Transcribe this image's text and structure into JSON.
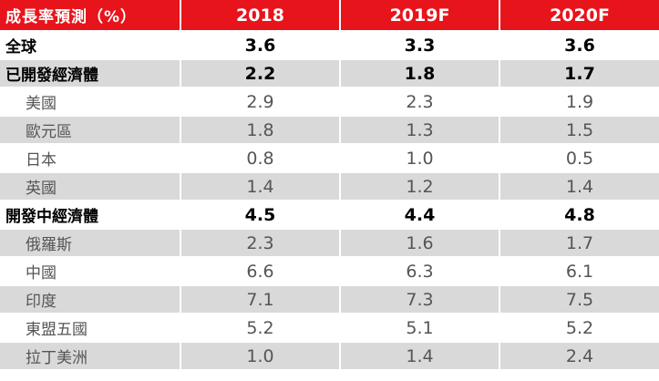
{
  "table": {
    "header": {
      "label": "成長率預測（%）",
      "years": [
        "2018",
        "2019F",
        "2020F"
      ]
    },
    "rows": [
      {
        "label": "全球",
        "values": [
          "3.6",
          "3.3",
          "3.6"
        ]
      },
      {
        "label": "已開發經濟體",
        "values": [
          "2.2",
          "1.8",
          "1.7"
        ]
      },
      {
        "label": "美國",
        "values": [
          "2.9",
          "2.3",
          "1.9"
        ]
      },
      {
        "label": "歐元區",
        "values": [
          "1.8",
          "1.3",
          "1.5"
        ]
      },
      {
        "label": "日本",
        "values": [
          "0.8",
          "1.0",
          "0.5"
        ]
      },
      {
        "label": "英國",
        "values": [
          "1.4",
          "1.2",
          "1.4"
        ]
      },
      {
        "label": "開發中經濟體",
        "values": [
          "4.5",
          "4.4",
          "4.8"
        ]
      },
      {
        "label": "俄羅斯",
        "values": [
          "2.3",
          "1.6",
          "1.7"
        ]
      },
      {
        "label": "中國",
        "values": [
          "6.6",
          "6.3",
          "6.1"
        ]
      },
      {
        "label": "印度",
        "values": [
          "7.1",
          "7.3",
          "7.5"
        ]
      },
      {
        "label": "東盟五國",
        "values": [
          "5.2",
          "5.1",
          "5.2"
        ]
      },
      {
        "label": "拉丁美洲",
        "values": [
          "1.0",
          "1.4",
          "2.4"
        ]
      }
    ]
  },
  "colors": {
    "header_background": "#e8141b",
    "header_text": "#ffffff",
    "shaded_row": "#d9d9d9",
    "plain_row": "#ffffff",
    "major_text": "#000000",
    "minor_text": "#555555"
  }
}
